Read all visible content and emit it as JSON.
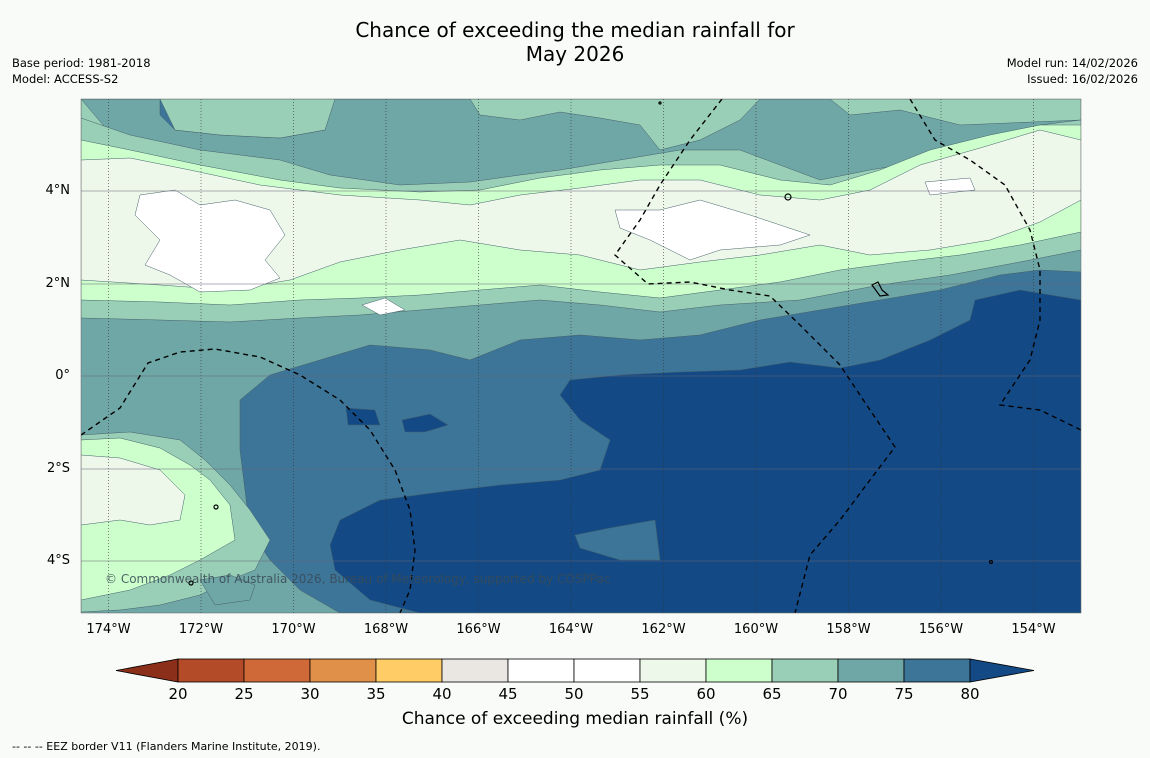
{
  "title": {
    "line1": "Chance of exceeding the median rainfall for",
    "line2": "May 2026"
  },
  "meta": {
    "base_period": "Base period: 1981-2018",
    "model": "Model: ACCESS-S2",
    "model_run": "Model run: 14/02/2026",
    "issued": "Issued: 16/02/2026"
  },
  "map": {
    "latitude_labels": [
      "4°N",
      "2°N",
      "0°",
      "2°S",
      "4°S"
    ],
    "longitude_labels": [
      "174°W",
      "172°W",
      "170°W",
      "168°W",
      "166°W",
      "164°W",
      "162°W",
      "160°W",
      "158°W",
      "156°W",
      "154°W"
    ],
    "copyright": "© Commonwealth of Australia 2026, Bureau of Meteorology, supported by COSPPac"
  },
  "legend": {
    "title": "Chance of exceeding median rainfall (%)",
    "ticks": [
      "20",
      "25",
      "30",
      "35",
      "40",
      "45",
      "50",
      "55",
      "60",
      "65",
      "70",
      "75",
      "80"
    ],
    "bin_colors": [
      "#8b2e1a",
      "#b34a28",
      "#cf6a38",
      "#e09048",
      "#ffcc66",
      "#eae7e3",
      "#ffffff",
      "#ffffff",
      "#edf7ea",
      "#ccffcc",
      "#99cfb7",
      "#6fa6a6",
      "#3d7599",
      "#134a86"
    ]
  },
  "footer": "--  --  -- EEZ border V11 (Flanders Marine Institute, 2019)."
}
